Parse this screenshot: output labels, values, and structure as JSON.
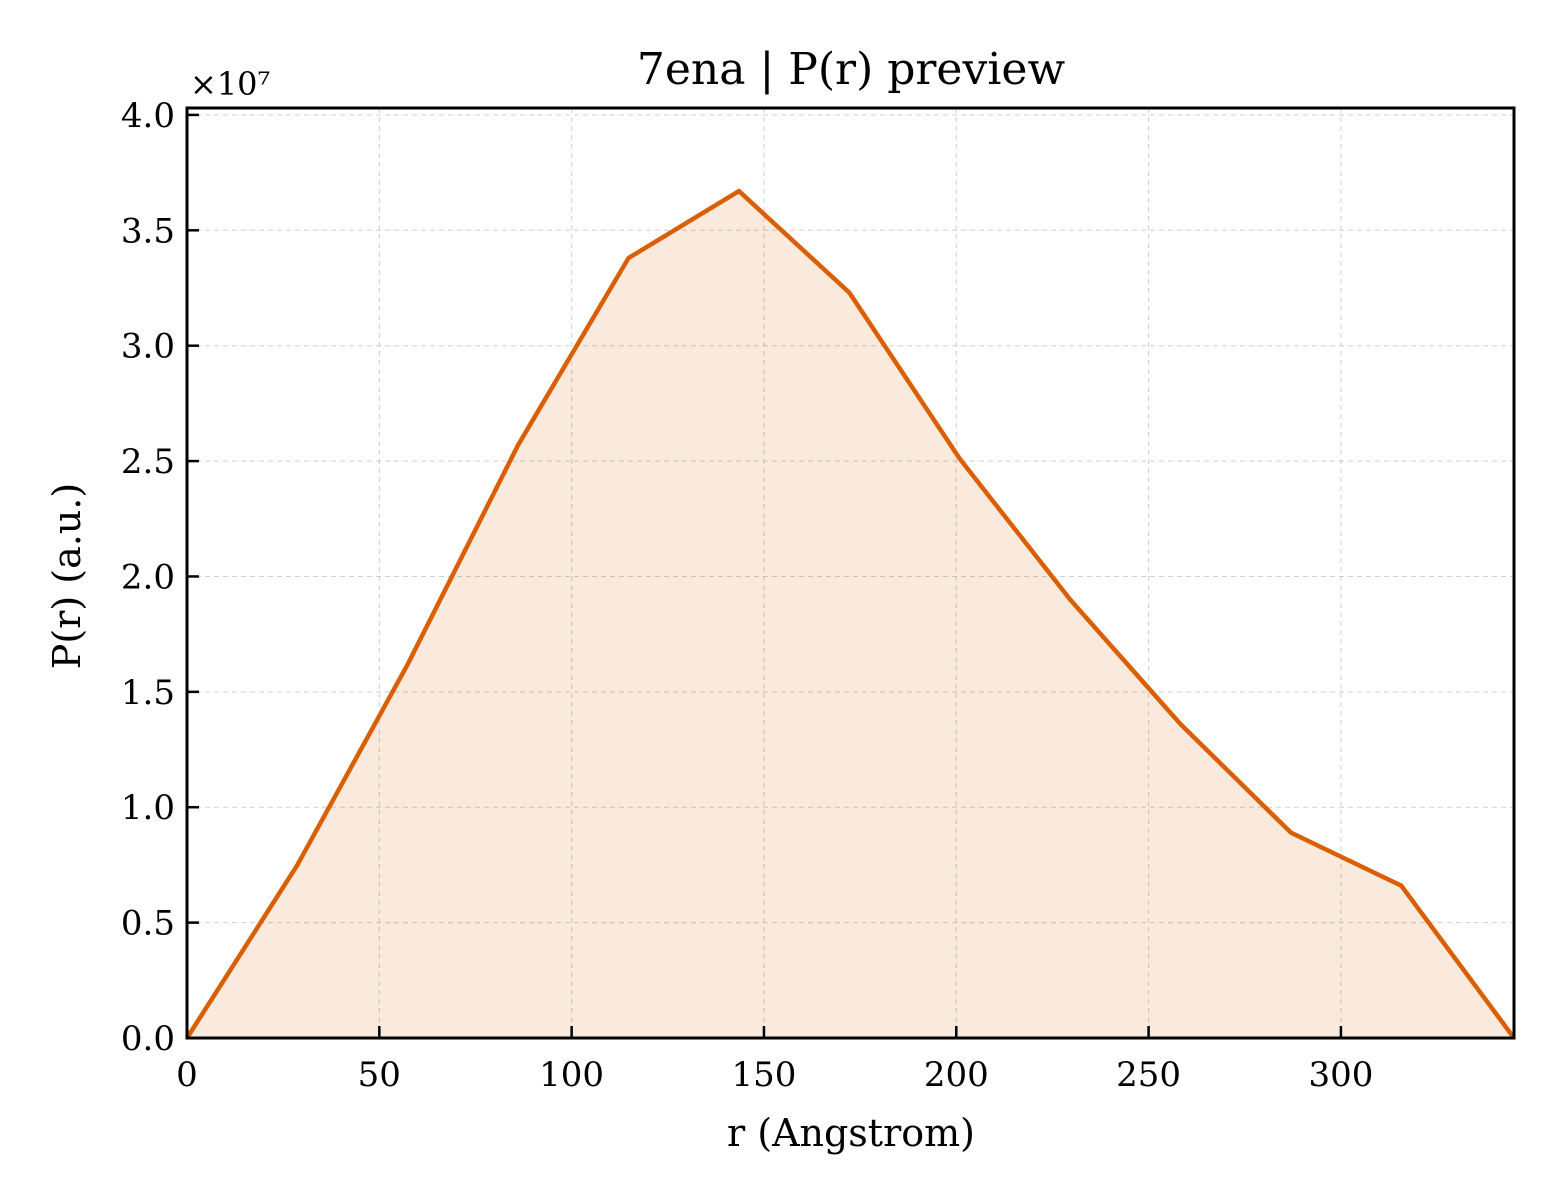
{
  "chart_data": {
    "type": "area",
    "title": "7ena | P(r) preview",
    "xlabel": "r (Angstrom)",
    "ylabel": "P(r) (a.u.)",
    "y_offset_text": "×10⁷",
    "xlim": [
      0,
      345
    ],
    "ylim": [
      0,
      4.03
    ],
    "y_scale_note": "values in units of 1e7",
    "x_ticks": [
      0,
      50,
      100,
      150,
      200,
      250,
      300
    ],
    "x_tick_labels": [
      "0",
      "50",
      "100",
      "150",
      "200",
      "250",
      "300"
    ],
    "y_ticks": [
      0,
      0.5,
      1.0,
      1.5,
      2.0,
      2.5,
      3.0,
      3.5,
      4.0
    ],
    "y_tick_labels": [
      "0.0",
      "0.5",
      "1.0",
      "1.5",
      "2.0",
      "2.5",
      "3.0",
      "3.5",
      "4.0"
    ],
    "grid": true,
    "line_color": "#d95f02",
    "fill_color": "#d95f02",
    "fill_opacity": 0.13,
    "series": [
      {
        "x": [
          0,
          28.7,
          57.4,
          86.1,
          114.8,
          143.5,
          172.2,
          200.9,
          229.6,
          258.3,
          287.0,
          315.7,
          345.0
        ],
        "values": [
          0.0,
          0.75,
          1.62,
          2.57,
          3.38,
          3.67,
          3.23,
          2.51,
          1.9,
          1.36,
          0.89,
          0.66,
          0.0
        ]
      }
    ]
  }
}
